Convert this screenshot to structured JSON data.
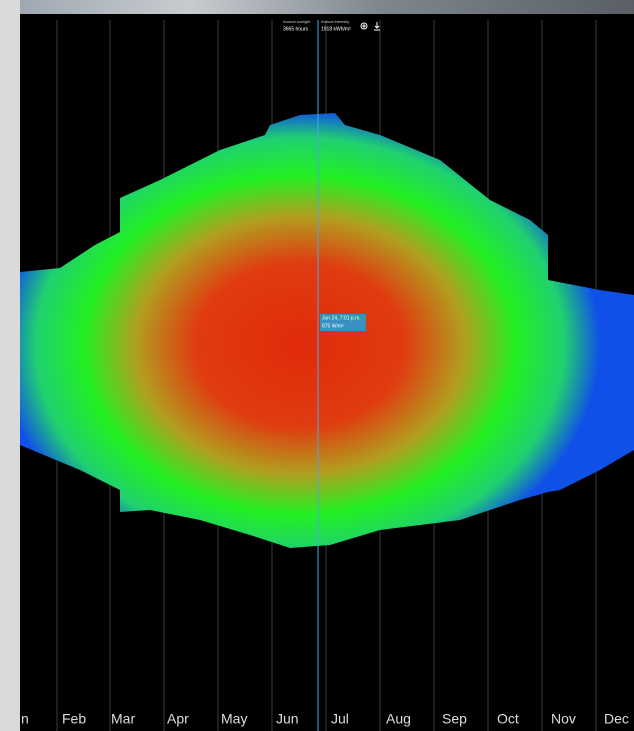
{
  "header": {
    "sunlight_label": "Annual sunlight",
    "sunlight_value": "3665 hours",
    "intensity_label": "Annual intensity",
    "intensity_value": "1918 kWh/m²"
  },
  "tooltip": {
    "time": "Jun 24, 7:01 p.m.",
    "value": "875 W/m²"
  },
  "months": [
    "n",
    "Feb",
    "Mar",
    "Apr",
    "May",
    "Jun",
    "Jul",
    "Aug",
    "Sep",
    "Oct",
    "Nov",
    "Dec"
  ]
}
